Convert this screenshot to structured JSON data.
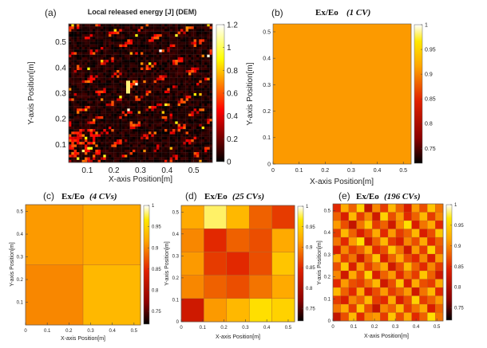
{
  "panels": [
    {
      "letter": "(a)",
      "title_text": "Local released energy [J] (DEM)",
      "xlabel": "X-axis Position[m]",
      "ylabel": "Y-axis Position[m]",
      "xticks": [
        "0.1",
        "0.2",
        "0.3",
        "0.4",
        "0.5"
      ],
      "yticks": [
        "0.1",
        "0.2",
        "0.3",
        "0.4",
        "0.5"
      ],
      "cticks": [
        "0",
        "0.2",
        "0.4",
        "0.6",
        "0.8",
        "1",
        "1.2"
      ]
    },
    {
      "letter": "(b)",
      "title_ratio": "Ex/Eo",
      "title_cvs": "(1 CV)",
      "xlabel": "X-axis Position[m]",
      "ylabel": "Y-axis Position[m]",
      "xticks": [
        "0",
        "0.1",
        "0.2",
        "0.3",
        "0.4",
        "0.5"
      ],
      "yticks": [
        "0",
        "0.1",
        "0.2",
        "0.3",
        "0.4",
        "0.5"
      ],
      "cticks": [
        "1",
        "0.95",
        "0.9",
        "0.85",
        "0.8",
        "0.75"
      ]
    },
    {
      "letter": "(c)",
      "title_ratio": "Ex/Eo",
      "title_cvs": "(4 CVs)",
      "xlabel": "X-axis Position[m]",
      "ylabel": "Y-axis Position[m]",
      "xticks": [
        "0",
        "0.1",
        "0.2",
        "0.3",
        "0.4",
        "0.5"
      ],
      "yticks": [
        "0.1",
        "0.2",
        "0.3",
        "0.4",
        "0.5"
      ],
      "cticks": [
        "1",
        "0.95",
        "0.9",
        "0.85",
        "0.8",
        "0.75"
      ]
    },
    {
      "letter": "(d)",
      "title_ratio": "Ex/Eo",
      "title_cvs": "(25 CVs)",
      "xlabel": "X-axis Position[m]",
      "ylabel": "Y-axis Position[m]",
      "xticks": [
        "0",
        "0.1",
        "0.2",
        "0.3",
        "0.4",
        "0.5"
      ],
      "yticks": [
        "0",
        "0.1",
        "0.2",
        "0.3",
        "0.4",
        "0.5"
      ],
      "cticks": [
        "1",
        "0.95",
        "0.9",
        "0.85",
        "0.8",
        "0.75"
      ]
    },
    {
      "letter": "(e)",
      "title_ratio": "Ex/Eo",
      "title_cvs": "(196 CVs)",
      "xlabel": "X-axis Position[m]",
      "ylabel": "Y-axis Position[m]",
      "xticks": [
        "0",
        "0.1",
        "0.2",
        "0.3",
        "0.4",
        "0.5"
      ],
      "yticks": [
        "0",
        "0.1",
        "0.2",
        "0.3",
        "0.4",
        "0.5"
      ],
      "cticks": [
        "1",
        "0.95",
        "0.9",
        "0.85",
        "0.8",
        "0.75"
      ]
    }
  ],
  "chart_data": [
    {
      "type": "heatmap",
      "id": "a",
      "title": "Local released energy [J] (DEM)",
      "xlabel": "X-axis Position[m]",
      "ylabel": "Y-axis Position[m]",
      "xlim": [
        0.03,
        0.57
      ],
      "ylim": [
        0.03,
        0.57
      ],
      "clim": [
        0,
        1.2
      ],
      "colormap": "hot",
      "grid_size": 54,
      "description": "fine-grained DEM energy map, mostly near 0 with streaks up to ~1.2"
    },
    {
      "type": "heatmap",
      "id": "b",
      "title": "Ex/Eo (1 CV)",
      "xlabel": "X-axis Position[m]",
      "ylabel": "Y-axis Position[m]",
      "xlim": [
        0,
        0.53
      ],
      "ylim": [
        0,
        0.53
      ],
      "clim": [
        0.72,
        1
      ],
      "grid_size": 1,
      "values": [
        [
          0.91
        ]
      ]
    },
    {
      "type": "heatmap",
      "id": "c",
      "title": "Ex/Eo (4 CVs)",
      "xlabel": "X-axis Position[m]",
      "ylabel": "Y-axis Position[m]",
      "xlim": [
        0,
        0.53
      ],
      "ylim": [
        0,
        0.53
      ],
      "clim": [
        0.72,
        1
      ],
      "grid_size": 2,
      "values": [
        [
          0.91,
          0.92
        ],
        [
          0.9,
          0.93
        ]
      ]
    },
    {
      "type": "heatmap",
      "id": "d",
      "title": "Ex/Eo (25 CVs)",
      "xlabel": "X-axis Position[m]",
      "ylabel": "Y-axis Position[m]",
      "xlim": [
        0,
        0.53
      ],
      "ylim": [
        0,
        0.53
      ],
      "clim": [
        0.72,
        1
      ],
      "grid_size": 5,
      "values": [
        [
          0.92,
          0.98,
          0.93,
          0.88,
          0.86
        ],
        [
          0.9,
          0.85,
          0.88,
          0.87,
          0.92
        ],
        [
          0.91,
          0.86,
          0.85,
          0.87,
          0.94
        ],
        [
          0.9,
          0.88,
          0.87,
          0.89,
          0.92
        ],
        [
          0.83,
          0.91,
          0.93,
          0.96,
          0.95
        ]
      ]
    },
    {
      "type": "heatmap",
      "id": "e",
      "title": "Ex/Eo (196 CVs)",
      "xlabel": "X-axis Position[m]",
      "ylabel": "Y-axis Position[m]",
      "xlim": [
        0,
        0.53
      ],
      "ylim": [
        0,
        0.53
      ],
      "clim": [
        0.72,
        1
      ],
      "grid_size": 14,
      "values": [
        [
          0.85,
          0.92,
          0.88,
          0.95,
          0.82,
          0.9,
          0.86,
          0.93,
          0.88,
          0.84,
          0.91,
          0.87,
          0.94,
          0.89
        ],
        [
          0.88,
          0.84,
          0.93,
          0.86,
          0.9,
          0.83,
          0.95,
          0.87,
          0.91,
          0.85,
          0.88,
          0.93,
          0.86,
          0.9
        ],
        [
          0.91,
          0.87,
          0.82,
          0.89,
          0.94,
          0.86,
          0.88,
          0.83,
          0.9,
          0.96,
          0.84,
          0.89,
          0.92,
          0.85
        ],
        [
          0.86,
          0.93,
          0.88,
          0.84,
          0.87,
          0.92,
          0.85,
          0.91,
          0.86,
          0.88,
          0.93,
          0.84,
          0.87,
          0.94
        ],
        [
          0.89,
          0.85,
          0.91,
          0.96,
          0.83,
          0.88,
          0.93,
          0.86,
          0.84,
          0.9,
          0.87,
          0.92,
          0.85,
          0.88
        ],
        [
          0.84,
          0.9,
          0.86,
          0.88,
          0.92,
          0.85,
          0.87,
          0.94,
          0.89,
          0.83,
          0.91,
          0.86,
          0.95,
          0.87
        ],
        [
          0.92,
          0.86,
          0.89,
          0.83,
          0.88,
          0.94,
          0.84,
          0.88,
          0.92,
          0.87,
          0.85,
          0.9,
          0.84,
          0.91
        ],
        [
          0.87,
          0.94,
          0.84,
          0.91,
          0.86,
          0.89,
          0.92,
          0.83,
          0.87,
          0.93,
          0.88,
          0.85,
          0.9,
          0.86
        ],
        [
          0.9,
          0.83,
          0.92,
          0.87,
          0.95,
          0.84,
          0.88,
          0.91,
          0.85,
          0.89,
          0.86,
          0.94,
          0.88,
          0.83
        ],
        [
          0.85,
          0.91,
          0.87,
          0.86,
          0.89,
          0.93,
          0.83,
          0.87,
          0.94,
          0.84,
          0.92,
          0.87,
          0.86,
          0.92
        ],
        [
          0.93,
          0.88,
          0.85,
          0.92,
          0.84,
          0.87,
          0.91,
          0.86,
          0.88,
          0.91,
          0.83,
          0.89,
          0.93,
          0.85
        ],
        [
          0.86,
          0.84,
          0.9,
          0.88,
          0.93,
          0.86,
          0.85,
          0.92,
          0.84,
          0.87,
          0.95,
          0.86,
          0.88,
          0.91
        ],
        [
          0.89,
          0.92,
          0.86,
          0.94,
          0.87,
          0.82,
          0.9,
          0.88,
          0.93,
          0.86,
          0.89,
          0.92,
          0.84,
          0.88
        ],
        [
          0.82,
          0.87,
          0.93,
          0.85,
          0.9,
          0.91,
          0.86,
          0.94,
          0.87,
          0.92,
          0.85,
          0.88,
          0.96,
          0.89
        ]
      ]
    }
  ]
}
